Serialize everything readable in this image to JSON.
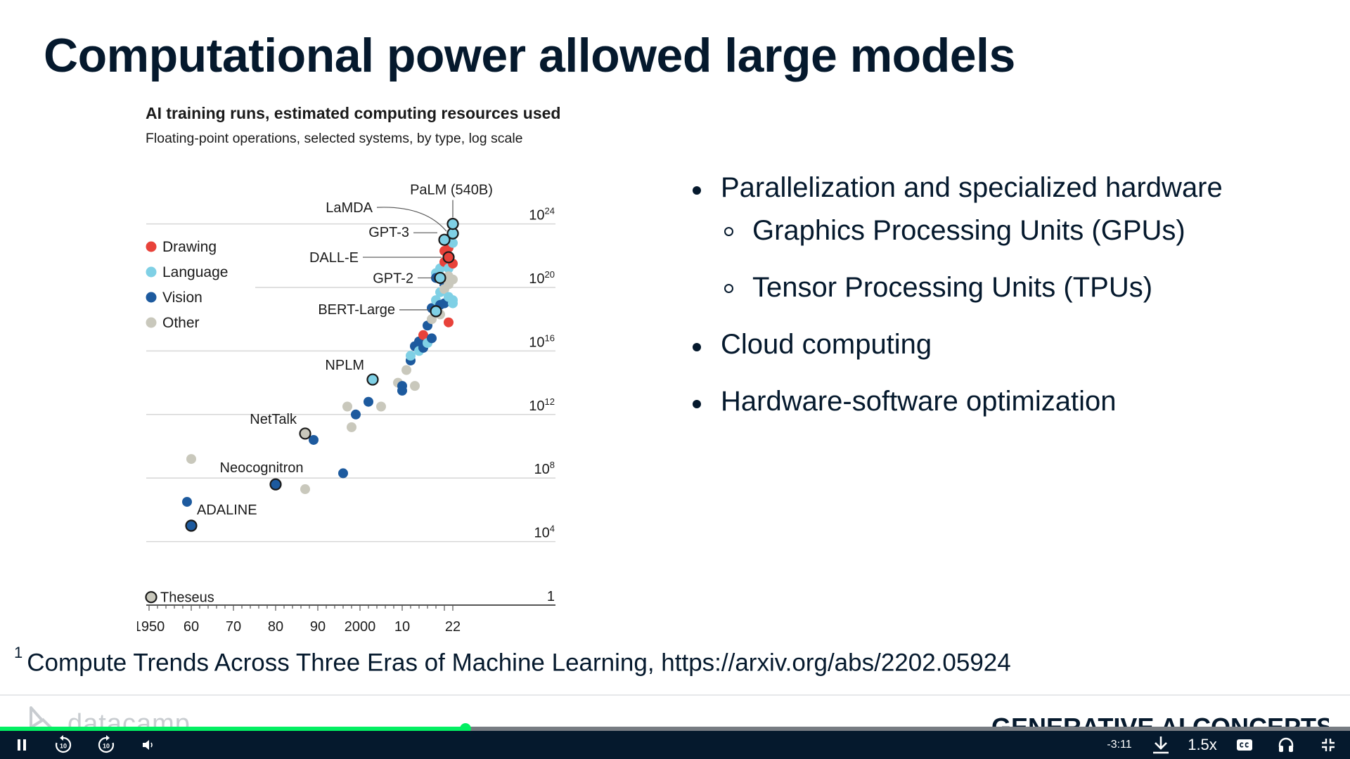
{
  "slide": {
    "title": "Computational power allowed large models",
    "bullets": [
      {
        "text": "Parallelization and specialized hardware",
        "level": 1
      },
      {
        "text": "Graphics Processing Units (GPUs)",
        "level": 2
      },
      {
        "text": "Tensor Processing Units (TPUs)",
        "level": 2
      },
      {
        "text": "Cloud computing",
        "level": 1
      },
      {
        "text": "Hardware-software optimization",
        "level": 1
      }
    ],
    "footnote_marker": "1",
    "footnote": "Compute Trends Across Three Eras of Machine Learning, https://arxiv.org/abs/2202.05924"
  },
  "chart_data": {
    "type": "scatter",
    "title": "AI training runs, estimated computing resources used",
    "subtitle": "Floating-point operations, selected systems, by type, log scale",
    "log_scale_y": true,
    "xlim": [
      1950,
      2022
    ],
    "ylim_log10": [
      0,
      24
    ],
    "x_ticks": [
      {
        "value": 1950,
        "label": "1950"
      },
      {
        "value": 1960,
        "label": "60"
      },
      {
        "value": 1970,
        "label": "70"
      },
      {
        "value": 1980,
        "label": "80"
      },
      {
        "value": 1990,
        "label": "90"
      },
      {
        "value": 2000,
        "label": "2000"
      },
      {
        "value": 2010,
        "label": "10"
      },
      {
        "value": 2022,
        "label": "22"
      }
    ],
    "y_ticks": [
      {
        "exp": 0,
        "base": "1",
        "sup": ""
      },
      {
        "exp": 4,
        "base": "10",
        "sup": "4"
      },
      {
        "exp": 8,
        "base": "10",
        "sup": "8"
      },
      {
        "exp": 12,
        "base": "10",
        "sup": "12"
      },
      {
        "exp": 16,
        "base": "10",
        "sup": "16"
      },
      {
        "exp": 20,
        "base": "10",
        "sup": "20"
      },
      {
        "exp": 24,
        "base": "10",
        "sup": "24"
      }
    ],
    "legend": [
      {
        "name": "Drawing",
        "color": "#e8423a"
      },
      {
        "name": "Language",
        "color": "#7fd0e5"
      },
      {
        "name": "Vision",
        "color": "#1d5a9e"
      },
      {
        "name": "Other",
        "color": "#c9c8bc"
      }
    ],
    "legend_position": "left",
    "labeled_systems": [
      {
        "name": "Theseus",
        "x": 1950.5,
        "y": 0.5,
        "cat": "Other",
        "label_side": "right"
      },
      {
        "name": "ADALINE",
        "x": 1960,
        "y": 5.0,
        "cat": "Vision",
        "label_side": "above-right"
      },
      {
        "name": "Neocognitron",
        "x": 1980,
        "y": 7.6,
        "cat": "Vision",
        "label_side": "above"
      },
      {
        "name": "NetTalk",
        "x": 1987,
        "y": 10.8,
        "cat": "Other",
        "label_side": "above-left"
      },
      {
        "name": "NPLM",
        "x": 2003,
        "y": 14.2,
        "cat": "Language",
        "label_side": "left"
      },
      {
        "name": "BERT-Large",
        "x": 2018,
        "y": 18.5,
        "cat": "Language",
        "label_side": "left"
      },
      {
        "name": "GPT-2",
        "x": 2019,
        "y": 20.6,
        "cat": "Language",
        "label_side": "left"
      },
      {
        "name": "DALL-E",
        "x": 2021,
        "y": 21.9,
        "cat": "Drawing",
        "label_side": "left"
      },
      {
        "name": "GPT-3",
        "x": 2020,
        "y": 23.0,
        "cat": "Language",
        "label_side": "left"
      },
      {
        "name": "LaMDA",
        "x": 2022,
        "y": 23.4,
        "cat": "Language",
        "label_side": "left"
      },
      {
        "name": "PaLM (540B)",
        "x": 2022,
        "y": 24.0,
        "cat": "Language",
        "label_side": "above"
      }
    ],
    "points": [
      {
        "x": 1959,
        "y": 6.5,
        "cat": "Vision"
      },
      {
        "x": 1960,
        "y": 9.2,
        "cat": "Other"
      },
      {
        "x": 1987,
        "y": 7.3,
        "cat": "Other"
      },
      {
        "x": 1989,
        "y": 10.4,
        "cat": "Vision"
      },
      {
        "x": 1996,
        "y": 8.3,
        "cat": "Vision"
      },
      {
        "x": 1997,
        "y": 12.5,
        "cat": "Other"
      },
      {
        "x": 1998,
        "y": 11.2,
        "cat": "Other"
      },
      {
        "x": 1999,
        "y": 12.0,
        "cat": "Vision"
      },
      {
        "x": 2002,
        "y": 12.8,
        "cat": "Vision"
      },
      {
        "x": 2005,
        "y": 12.5,
        "cat": "Other"
      },
      {
        "x": 2009,
        "y": 14.0,
        "cat": "Other"
      },
      {
        "x": 2010,
        "y": 13.5,
        "cat": "Vision"
      },
      {
        "x": 2010,
        "y": 13.8,
        "cat": "Vision"
      },
      {
        "x": 2012,
        "y": 15.4,
        "cat": "Vision"
      },
      {
        "x": 2011,
        "y": 14.8,
        "cat": "Other"
      },
      {
        "x": 2012,
        "y": 15.7,
        "cat": "Language"
      },
      {
        "x": 2013,
        "y": 16.3,
        "cat": "Vision"
      },
      {
        "x": 2013,
        "y": 13.8,
        "cat": "Other"
      },
      {
        "x": 2014,
        "y": 16.0,
        "cat": "Language"
      },
      {
        "x": 2014,
        "y": 16.6,
        "cat": "Vision"
      },
      {
        "x": 2015,
        "y": 17.0,
        "cat": "Drawing"
      },
      {
        "x": 2015,
        "y": 16.2,
        "cat": "Vision"
      },
      {
        "x": 2016,
        "y": 17.6,
        "cat": "Vision"
      },
      {
        "x": 2016,
        "y": 16.5,
        "cat": "Language"
      },
      {
        "x": 2017,
        "y": 18.7,
        "cat": "Vision"
      },
      {
        "x": 2017,
        "y": 16.8,
        "cat": "Vision"
      },
      {
        "x": 2017,
        "y": 18.0,
        "cat": "Other"
      },
      {
        "x": 2018,
        "y": 19.2,
        "cat": "Language"
      },
      {
        "x": 2018,
        "y": 20.9,
        "cat": "Language"
      },
      {
        "x": 2018,
        "y": 20.6,
        "cat": "Vision"
      },
      {
        "x": 2019,
        "y": 21.2,
        "cat": "Language"
      },
      {
        "x": 2019,
        "y": 19.7,
        "cat": "Language"
      },
      {
        "x": 2019,
        "y": 18.9,
        "cat": "Vision"
      },
      {
        "x": 2019,
        "y": 18.3,
        "cat": "Other"
      },
      {
        "x": 2020,
        "y": 19.0,
        "cat": "Vision"
      },
      {
        "x": 2020,
        "y": 21.6,
        "cat": "Drawing"
      },
      {
        "x": 2020,
        "y": 20.2,
        "cat": "Vision"
      },
      {
        "x": 2020,
        "y": 19.9,
        "cat": "Other"
      },
      {
        "x": 2020,
        "y": 22.3,
        "cat": "Drawing"
      },
      {
        "x": 2021,
        "y": 22.5,
        "cat": "Drawing"
      },
      {
        "x": 2021,
        "y": 21.2,
        "cat": "Language"
      },
      {
        "x": 2021,
        "y": 20.7,
        "cat": "Other"
      },
      {
        "x": 2021,
        "y": 17.8,
        "cat": "Drawing"
      },
      {
        "x": 2021,
        "y": 19.4,
        "cat": "Language"
      },
      {
        "x": 2021,
        "y": 20.2,
        "cat": "Other"
      },
      {
        "x": 2022,
        "y": 19.0,
        "cat": "Language"
      },
      {
        "x": 2022,
        "y": 21.5,
        "cat": "Drawing"
      },
      {
        "x": 2022,
        "y": 22.8,
        "cat": "Language"
      },
      {
        "x": 2022,
        "y": 20.5,
        "cat": "Other"
      },
      {
        "x": 2022,
        "y": 19.2,
        "cat": "Language"
      }
    ]
  },
  "footer": {
    "brand": "datacamp",
    "course": "GENERATIVE AI CONCEPTS"
  },
  "player": {
    "progress_fraction": 0.345,
    "time_remaining": "-3:11",
    "speed": "1.5x",
    "skip_back_seconds": "10",
    "skip_forward_seconds": "10",
    "colors": {
      "bar": "#05192d",
      "progress": "#03ef62",
      "track": "#777c82"
    }
  }
}
